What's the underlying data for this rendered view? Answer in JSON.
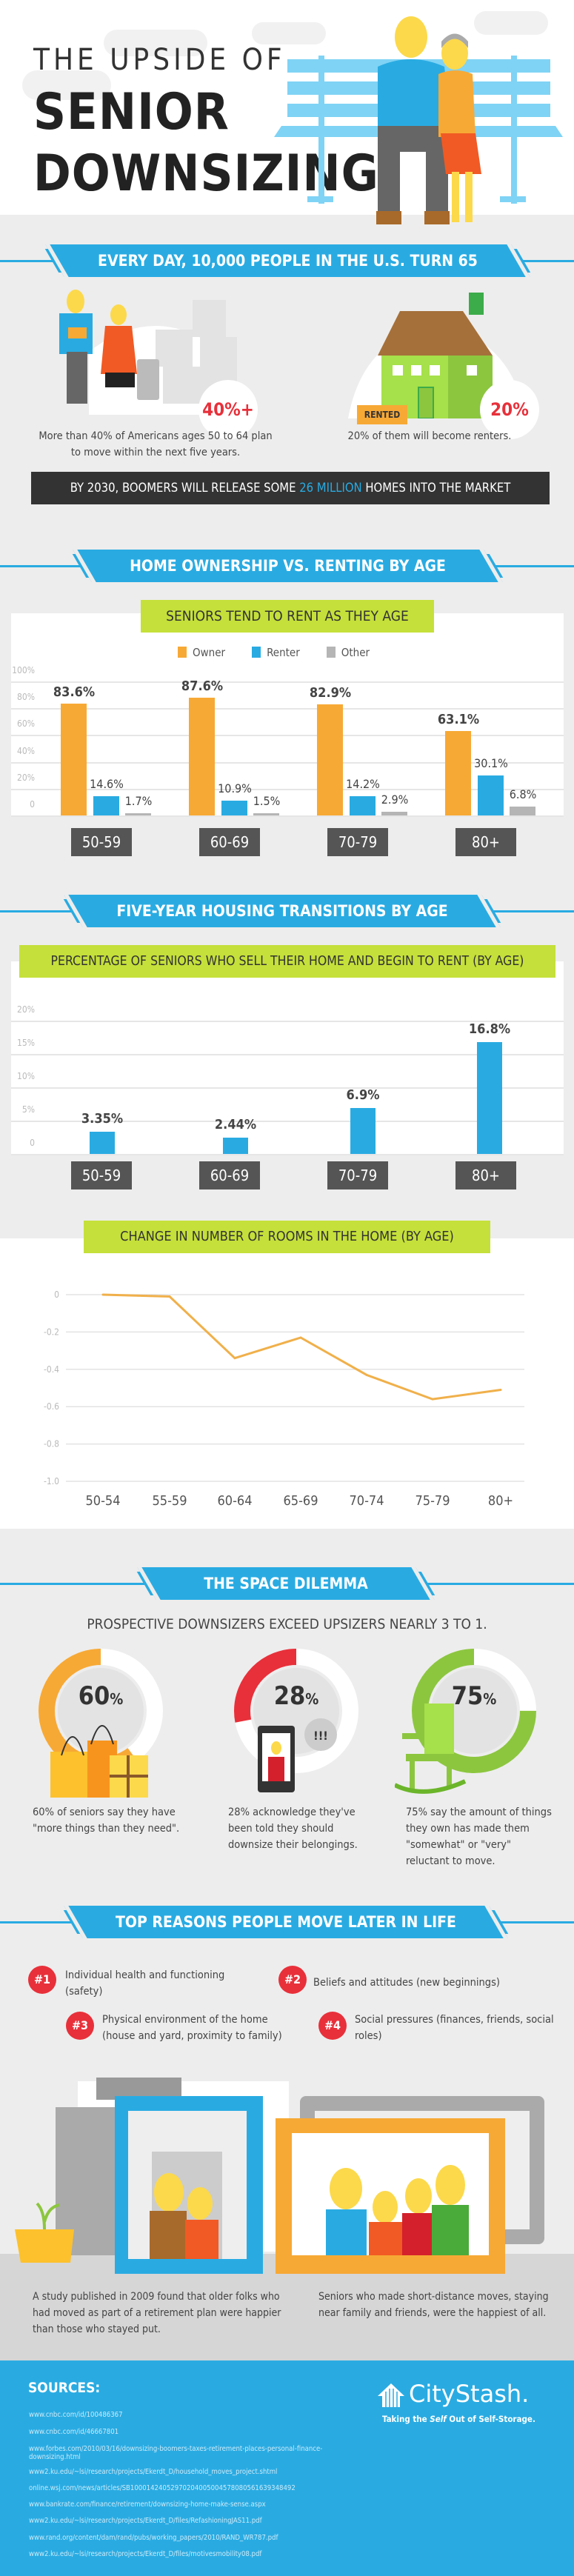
{
  "hero": {
    "title_line1": "THE UPSIDE OF",
    "title_line2": "SENIOR",
    "title_line3": "DOWNSIZING"
  },
  "intro": {
    "banner": "EVERY DAY, 10,000 PEOPLE IN THE U.S. TURN 65",
    "stat1": {
      "value": "40%+",
      "caption": "More than 40% of Americans ages 50 to 64 plan to move within the next five years."
    },
    "stat2": {
      "value": "20%",
      "sign": "RENTED",
      "caption": "20% of them will become renters."
    },
    "bar_pre": "BY 2030, BOOMERS WILL RELEASE SOME ",
    "bar_highlight": "26 MILLION",
    "bar_post": " HOMES INTO THE MARKET"
  },
  "ownership": {
    "banner": "HOME OWNERSHIP VS. RENTING BY AGE"
  },
  "transitions": {
    "banner": "FIVE-YEAR HOUSING TRANSITIONS BY AGE"
  },
  "colors": {
    "blue": "#29abe2",
    "orange": "#f7a935",
    "gray": "#b5b5b5",
    "green": "#c5e03a",
    "red": "#e8303a",
    "line": "#f0b04a"
  },
  "chart_data": [
    {
      "type": "bar",
      "title": "SENIORS TEND TO RENT AS THEY AGE",
      "categories": [
        "50-59",
        "60-69",
        "70-79",
        "80+"
      ],
      "series": [
        {
          "name": "Owner",
          "values": [
            83.6,
            87.6,
            82.9,
            63.1
          ],
          "labels": [
            "83.6%",
            "87.6%",
            "82.9%",
            "63.1%"
          ]
        },
        {
          "name": "Renter",
          "values": [
            14.6,
            10.9,
            14.2,
            30.1
          ],
          "labels": [
            "14.6%",
            "10.9%",
            "14.2%",
            "30.1%"
          ]
        },
        {
          "name": "Other",
          "values": [
            1.7,
            1.5,
            2.9,
            6.8
          ],
          "labels": [
            "1.7%",
            "1.5%",
            "2.9%",
            "6.8%"
          ]
        }
      ],
      "yticks": [
        "100%",
        "80%",
        "60%",
        "40%",
        "20%",
        "0"
      ],
      "ylim": [
        0,
        100
      ],
      "legend": "top-center",
      "grid": true
    },
    {
      "type": "bar",
      "title": "PERCENTAGE OF SENIORS WHO SELL THEIR HOME AND BEGIN TO RENT (BY AGE)",
      "categories": [
        "50-59",
        "60-69",
        "70-79",
        "80+"
      ],
      "values": [
        3.35,
        2.44,
        6.9,
        16.8
      ],
      "labels": [
        "3.35%",
        "2.44%",
        "6.9%",
        "16.8%"
      ],
      "yticks": [
        "20%",
        "15%",
        "10%",
        "5%",
        "0"
      ],
      "ylim": [
        0,
        20
      ],
      "grid": true
    },
    {
      "type": "line",
      "title": "CHANGE IN NUMBER OF ROOMS IN THE HOME (BY AGE)",
      "categories": [
        "50-54",
        "55-59",
        "60-64",
        "65-69",
        "70-74",
        "75-79",
        "80+"
      ],
      "values": [
        0,
        -0.01,
        -0.34,
        -0.23,
        -0.43,
        -0.56,
        -0.51
      ],
      "yticks": [
        "0",
        "-0.2",
        "-0.4",
        "-0.6",
        "-0.8",
        "-1.0"
      ],
      "ylim": [
        -1.0,
        0
      ],
      "grid": true
    }
  ],
  "space": {
    "banner": "THE SPACE DILEMMA",
    "subtitle": "PROSPECTIVE DOWNSIZERS EXCEED UPSIZERS NEARLY 3 TO 1.",
    "items": [
      {
        "pct": 60,
        "num": "60",
        "unit": "%",
        "caption": "60% of seniors say they have \"more things than they need\".",
        "color": "#f7a935",
        "icon": "shopping-bags-icon"
      },
      {
        "pct": 28,
        "num": "28",
        "unit": "%",
        "caption": "28% acknowledge they've been told they should downsize their belongings.",
        "color": "#e8303a",
        "icon": "phone-icon",
        "bubble": "!!!"
      },
      {
        "pct": 75,
        "num": "75",
        "unit": "%",
        "caption": "75% say the amount of things they own has made them \"somewhat\" or \"very\" reluctant to move.",
        "color": "#8cc63f",
        "icon": "rocking-chair-icon"
      }
    ]
  },
  "reasons": {
    "banner": "TOP REASONS PEOPLE MOVE LATER IN LIFE",
    "items": [
      {
        "badge": "#1",
        "text": "Individual health and functioning (safety)"
      },
      {
        "badge": "#2",
        "text": "Beliefs and attitudes (new beginnings)"
      },
      {
        "badge": "#3",
        "text": "Physical environment of the home (house and yard, proximity to family)"
      },
      {
        "badge": "#4",
        "text": "Social pressures (finances, friends, social roles)"
      }
    ],
    "caption_left": "A study published in 2009 found that older folks who had moved as part of a retirement plan were happier than those who stayed put.",
    "caption_right": "Seniors who made short-distance moves, staying near family and friends, were the happiest of all."
  },
  "sources": {
    "title": "SOURCES:",
    "items": [
      "www.cnbc.com/id/100486367",
      "www.cnbc.com/id/46667801",
      "www.forbes.com/2010/03/16/downsizing-boomers-taxes-retirement-places-personal-finance-downsizing.html",
      "www2.ku.edu/~lsi/research/projects/Ekerdt_D/household_moves_project.shtml",
      "online.wsj.com/news/articles/SB10001424052970204005004578080561639348492",
      "www.bankrate.com/finance/retirement/downsizing-home-make-sense.aspx",
      "www2.ku.edu/~lsi/research/projects/Ekerdt_D/files/RefashioningJAS11.pdf",
      "www.rand.org/content/dam/rand/pubs/working_papers/2010/RAND_WR787.pdf",
      "www2.ku.edu/~lsi/research/projects/Ekerdt_D/files/motivesmobility08.pdf"
    ]
  },
  "brand": {
    "name": "CityStash.",
    "tagline_pre": "Taking the ",
    "tagline_em": "Self",
    "tagline_post": " Out of Self-Storage."
  }
}
